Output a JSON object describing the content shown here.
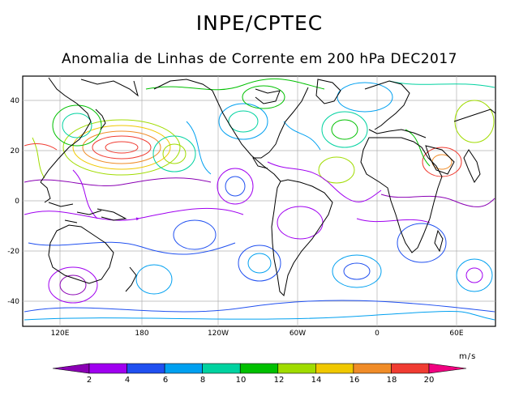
{
  "header": {
    "title": "INPE/CPTEC",
    "subtitle": "Anomalia de Linhas de Corrente em 200 hPa DEC2017"
  },
  "map": {
    "lat_labels": [
      "40",
      "20",
      "0",
      "-20",
      "-40"
    ],
    "lon_labels": [
      "120E",
      "180",
      "120W",
      "60W",
      "0",
      "60E"
    ],
    "background": "#ffffff",
    "coastline_color": "#000000",
    "gridline_color": "#b0b0b0"
  },
  "colorbar": {
    "units": "m/s",
    "tick_labels": [
      "2",
      "4",
      "6",
      "8",
      "10",
      "12",
      "14",
      "16",
      "18",
      "20"
    ],
    "colors": [
      "#8a00b4",
      "#a000f0",
      "#2050f0",
      "#00a0f0",
      "#00d2a0",
      "#00c000",
      "#a0dc00",
      "#f0c800",
      "#f08c28",
      "#f03c32",
      "#f00080"
    ]
  }
}
